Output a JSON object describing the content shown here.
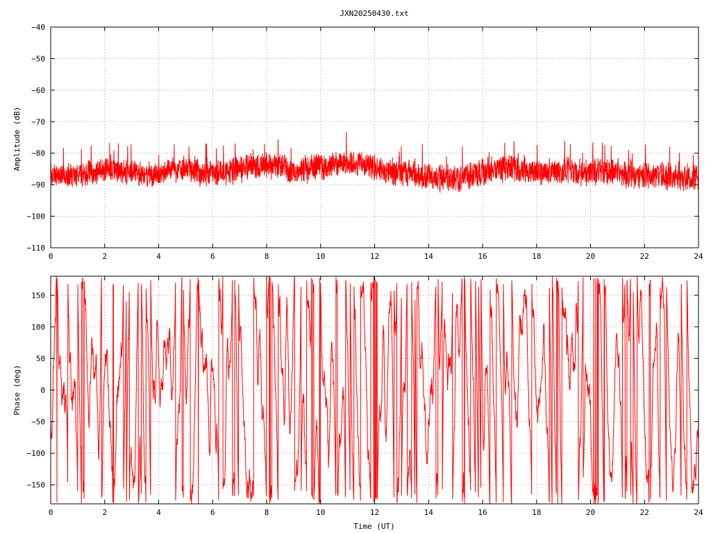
{
  "title": "JXN20250430.txt",
  "colors": {
    "series": "#ff0000",
    "frame": "#000000",
    "grid": "#a0a0a0",
    "background": "#ffffff"
  },
  "chart_data": [
    {
      "type": "line",
      "ylabel": "Amplitude (dB)",
      "xlabel": "",
      "xlim": [
        0,
        24
      ],
      "ylim": [
        -110,
        -40
      ],
      "xticks": [
        0,
        2,
        4,
        6,
        8,
        10,
        12,
        14,
        16,
        18,
        20,
        22,
        24
      ],
      "yticks": [
        -40,
        -50,
        -60,
        -70,
        -80,
        -90,
        -100,
        -110
      ],
      "xtick_labels": [
        "0",
        "2",
        "4",
        "6",
        "8",
        "10",
        "12",
        "14",
        "16",
        "18",
        "20",
        "22",
        "24"
      ],
      "ytick_labels": [
        "−40",
        "−50",
        "−60",
        "−70",
        "−80",
        "−90",
        "−100",
        "−110"
      ],
      "grid": true,
      "series": [
        {
          "color": "#ff0000",
          "x": [
            0,
            0.5,
            1,
            1.5,
            2,
            2.5,
            3,
            3.5,
            4,
            4.5,
            5,
            5.5,
            6,
            6.5,
            7,
            7.5,
            8,
            8.5,
            9,
            9.5,
            10,
            10.5,
            11,
            11.5,
            12,
            12.5,
            13,
            13.5,
            14,
            14.5,
            15,
            15.5,
            16,
            16.5,
            17,
            17.5,
            18,
            18.5,
            19,
            19.5,
            20,
            20.5,
            21,
            21.5,
            22,
            22.5,
            23,
            23.5,
            24
          ],
          "center": [
            -87,
            -87,
            -87,
            -86,
            -85,
            -86,
            -86,
            -87,
            -87,
            -85,
            -85,
            -86,
            -87,
            -86,
            -85,
            -84,
            -84,
            -84,
            -86,
            -85,
            -84,
            -84,
            -83,
            -83,
            -85,
            -86,
            -86,
            -87,
            -87,
            -88,
            -88,
            -87,
            -86,
            -85,
            -85,
            -85,
            -86,
            -86,
            -86,
            -86,
            -86,
            -86,
            -86,
            -87,
            -87,
            -87,
            -87,
            -88,
            -88
          ],
          "spread": [
            4.5,
            4.5,
            4.5,
            4.5,
            4.5,
            4.5,
            4.5,
            4.5,
            4.5,
            4.5,
            5,
            5,
            5,
            5,
            5,
            5,
            5,
            5,
            5,
            5,
            5,
            5,
            5,
            5,
            5,
            5,
            5,
            5,
            5,
            5,
            5,
            5,
            5,
            5,
            5,
            5,
            5,
            5,
            5,
            5,
            5,
            5,
            5,
            5,
            5,
            5,
            5,
            4.5,
            4.5
          ]
        }
      ]
    },
    {
      "type": "line",
      "ylabel": "Phase (deg)",
      "xlabel": "Time (UT)",
      "xlim": [
        0,
        24
      ],
      "ylim": [
        -180,
        180
      ],
      "xticks": [
        0,
        2,
        4,
        6,
        8,
        10,
        12,
        14,
        16,
        18,
        20,
        22,
        24
      ],
      "yticks": [
        150,
        100,
        50,
        0,
        -50,
        -100,
        -150
      ],
      "xtick_labels": [
        "0",
        "2",
        "4",
        "6",
        "8",
        "10",
        "12",
        "14",
        "16",
        "18",
        "20",
        "22",
        "24"
      ],
      "ytick_labels": [
        "150",
        "100",
        "50",
        "0",
        "−50",
        "−100",
        "−150"
      ],
      "grid": true,
      "series": [
        {
          "color": "#ff0000",
          "wrapped": true,
          "x_range": [
            0,
            24
          ],
          "y_range": [
            -180,
            180
          ]
        }
      ]
    }
  ]
}
